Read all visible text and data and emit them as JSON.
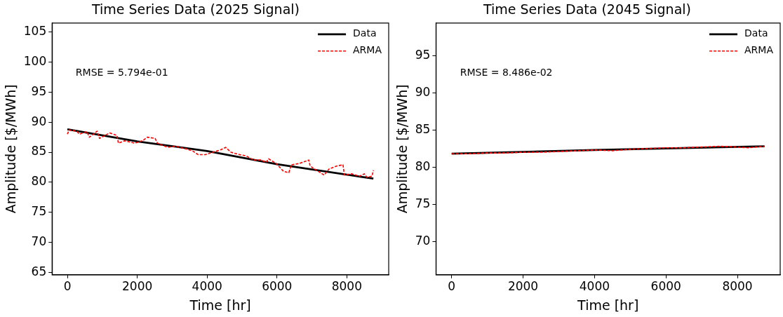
{
  "chart_data": [
    {
      "type": "line",
      "title": "Time Series Data (2025 Signal)",
      "xlabel": "Time [hr]",
      "ylabel": "Amplitude [$/MWh]",
      "annotations": [
        "RMSE = 5.794e-01"
      ],
      "xlim": [
        -438,
        9198
      ],
      "xticks": [
        0,
        2000,
        4000,
        6000,
        8000
      ],
      "ylim": [
        64.6,
        106.5
      ],
      "yticks": [
        65,
        70,
        75,
        80,
        85,
        90,
        95,
        100,
        105
      ],
      "grid": false,
      "legend": "top right",
      "marker": "none",
      "series": [
        {
          "name": "Data",
          "color": "#000000",
          "line_style": "solid",
          "x": [
            0,
            2000,
            4000,
            6000,
            8760
          ],
          "values": [
            88.8,
            86.8,
            85.2,
            83.0,
            80.6
          ]
        },
        {
          "name": "ARMA",
          "color": "#ff0000",
          "line_style": "dashed",
          "x": [
            0,
            50,
            270,
            340,
            560,
            630,
            850,
            920,
            1210,
            1420,
            1460,
            1640,
            1930,
            2150,
            2290,
            2510,
            2580,
            2870,
            3090,
            3370,
            3590,
            3740,
            3950,
            4170,
            4390,
            4530,
            4680,
            4930,
            5110,
            5330,
            5540,
            5690,
            5760,
            5980,
            6190,
            6340,
            6410,
            6630,
            6910,
            6950,
            7130,
            7350,
            7490,
            7710,
            7890,
            7930,
            8140,
            8360,
            8500,
            8580,
            8720,
            8760
          ],
          "values": [
            88.0,
            88.7,
            88.5,
            88.0,
            88.4,
            87.5,
            88.5,
            87.3,
            88.2,
            87.8,
            86.5,
            86.9,
            86.5,
            86.9,
            87.5,
            87.3,
            86.5,
            85.8,
            86.0,
            85.6,
            85.2,
            84.6,
            84.6,
            85.0,
            85.4,
            85.8,
            85.0,
            84.6,
            84.4,
            83.7,
            83.7,
            83.3,
            83.9,
            83.1,
            81.8,
            81.6,
            82.9,
            83.1,
            83.7,
            82.7,
            82.0,
            81.2,
            82.2,
            82.7,
            82.9,
            81.2,
            81.4,
            81.0,
            81.4,
            80.8,
            81.0,
            82.0
          ]
        }
      ]
    },
    {
      "type": "line",
      "title": "Time Series Data (2045 Signal)",
      "xlabel": "Time [hr]",
      "ylabel": "Amplitude [$/MWh]",
      "annotations": [
        "RMSE = 8.486e-02"
      ],
      "xlim": [
        -438,
        9198
      ],
      "xticks": [
        0,
        2000,
        4000,
        6000,
        8000
      ],
      "ylim": [
        65.5,
        99.4
      ],
      "yticks": [
        70,
        75,
        80,
        85,
        90,
        95
      ],
      "grid": false,
      "legend": "top right",
      "marker": "none",
      "series": [
        {
          "name": "Data",
          "color": "#000000",
          "line_style": "solid",
          "x": [
            0,
            4000,
            8760
          ],
          "values": [
            81.8,
            82.3,
            82.8
          ]
        },
        {
          "name": "ARMA",
          "color": "#ff0000",
          "line_style": "dashed",
          "x": [
            0,
            500,
            1000,
            1500,
            2000,
            2500,
            3000,
            3500,
            4000,
            4500,
            5000,
            5500,
            6000,
            6500,
            7000,
            7500,
            8000,
            8300,
            8760
          ],
          "values": [
            81.8,
            81.8,
            81.9,
            81.9,
            82.0,
            82.0,
            82.1,
            82.2,
            82.3,
            82.2,
            82.4,
            82.5,
            82.6,
            82.6,
            82.7,
            82.8,
            82.7,
            82.6,
            82.8
          ]
        }
      ]
    }
  ]
}
